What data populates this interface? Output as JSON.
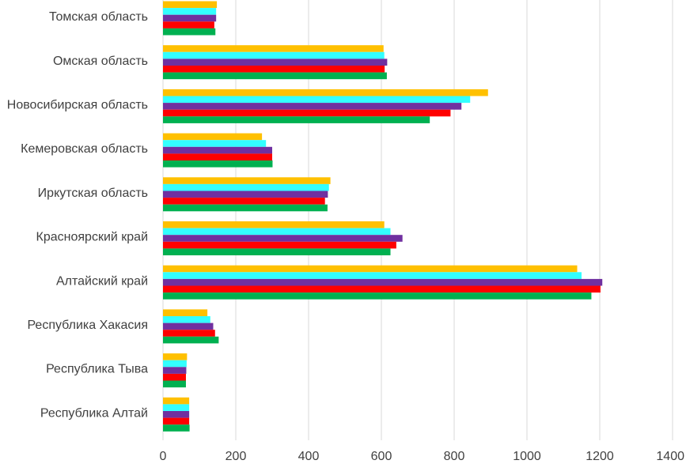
{
  "chart_data": {
    "type": "bar",
    "orientation": "horizontal",
    "title": "",
    "xlabel": "",
    "ylabel": "",
    "xlim": [
      0,
      1400
    ],
    "x_ticks": [
      0,
      200,
      400,
      600,
      800,
      1000,
      1200,
      1400
    ],
    "grid": "vertical",
    "legend": "none",
    "categories": [
      "Томская область",
      "Омская область",
      "Новосибирская область",
      "Кемеровская область",
      "Иркутская область",
      "Красноярский край",
      "Алтайский край",
      "Республика Хакасия",
      "Республика Тыва",
      "Республика Алтай"
    ],
    "series": [
      {
        "name": "series-1",
        "color": "#FFC000",
        "values": [
          148,
          606,
          893,
          272,
          460,
          608,
          1138,
          122,
          66,
          72
        ]
      },
      {
        "name": "series-2",
        "color": "#33FFFF",
        "values": [
          146,
          608,
          844,
          283,
          456,
          625,
          1150,
          130,
          65,
          72
        ]
      },
      {
        "name": "series-3",
        "color": "#7030A0",
        "values": [
          146,
          616,
          820,
          300,
          453,
          658,
          1207,
          138,
          64,
          72
        ]
      },
      {
        "name": "series-4",
        "color": "#FF0000",
        "values": [
          141,
          609,
          790,
          300,
          445,
          641,
          1202,
          143,
          63,
          72
        ]
      },
      {
        "name": "series-5",
        "color": "#00B050",
        "values": [
          144,
          615,
          733,
          301,
          452,
          625,
          1177,
          153,
          63,
          73
        ]
      }
    ]
  }
}
